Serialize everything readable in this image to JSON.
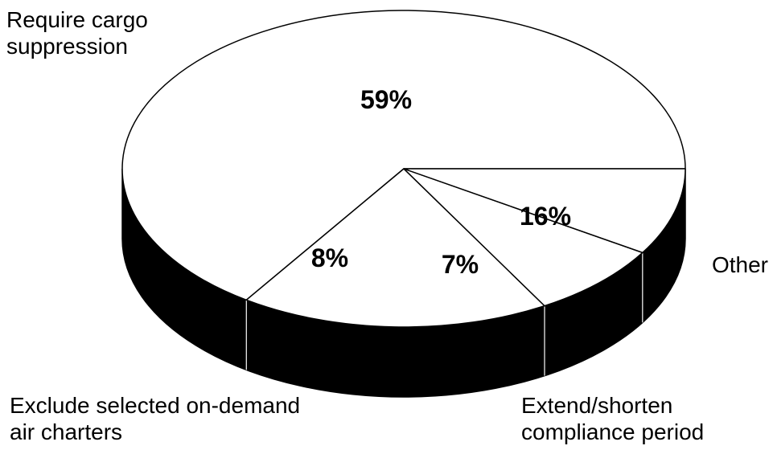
{
  "chart_data": {
    "type": "pie",
    "style": "3d-black-side-white-top",
    "colors": {
      "top": "#ffffff",
      "side": "#000000",
      "line": "#000000"
    },
    "slices": [
      {
        "label": "Require cargo suppression",
        "label_lines": [
          "Require cargo",
          "suppression"
        ],
        "value": 59,
        "value_text": "59%"
      },
      {
        "label": "Other",
        "label_lines": [
          "Other"
        ],
        "value": 16,
        "value_text": "16%"
      },
      {
        "label": "Extend/shorten compliance period",
        "label_lines": [
          "Extend/shorten",
          "compliance period"
        ],
        "value": 7,
        "value_text": "7%"
      },
      {
        "label": "Exclude selected on-demand air charters",
        "label_lines": [
          "Exclude selected on-demand",
          "air charters"
        ],
        "value": 8,
        "value_text": "8%"
      }
    ]
  }
}
